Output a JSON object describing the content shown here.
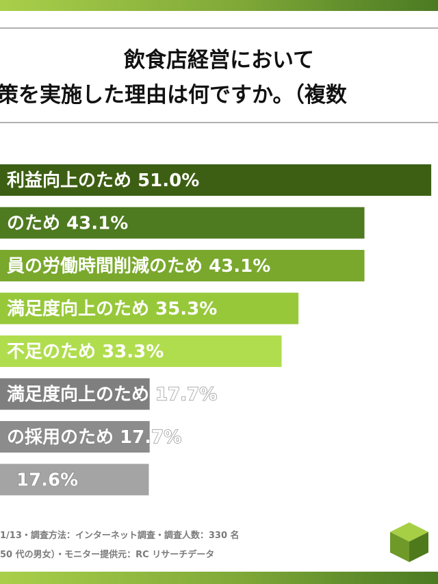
{
  "chart_data": {
    "type": "bar",
    "orientation": "horizontal",
    "title_lines": [
      "飲食店経営において",
      "策を実施した理由は何ですか。（複数"
    ],
    "categories": [
      "利益向上のため",
      "のため",
      "員の労働時間削減のため",
      "満足度向上のため",
      "不足のため",
      "満足度向上のため",
      "の採用のため",
      ""
    ],
    "values": [
      51.0,
      43.1,
      43.1,
      35.3,
      33.3,
      17.7,
      17.7,
      17.6
    ],
    "value_labels": [
      "51.0%",
      "43.1%",
      "43.1%",
      "35.3%",
      "33.3%",
      "17.7%",
      "17.7%",
      "17.6%"
    ],
    "bar_colors": [
      "#3d5f13",
      "#4e7a20",
      "#79a82c",
      "#97c83a",
      "#b0dd4e",
      "#7f7f7f",
      "#8c8c8c",
      "#a4a4a4"
    ],
    "xlim": [
      0,
      60
    ],
    "grid": false
  },
  "footer": {
    "line1": "1/13・調査方法：インターネット調査・調査人数：330 名",
    "line2": "50 代の男女）・モニター提供元：RC リサーチデータ"
  },
  "logo_icon": "green-cube-icon"
}
